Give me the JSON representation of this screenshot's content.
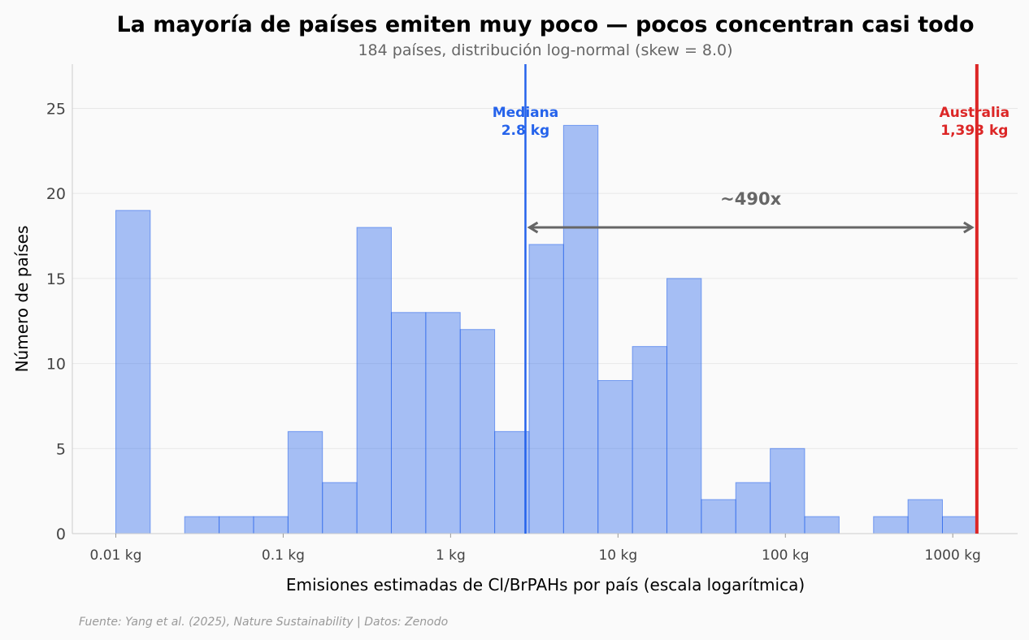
{
  "chart_data": {
    "type": "bar",
    "title": "La mayoría de países emiten muy poco — pocos concentran casi todo",
    "subtitle": "184 países, distribución log-normal (skew = 8.0)",
    "xlabel": "Emisiones estimadas de Cl/BrPAHs por país (escala logarítmica)",
    "ylabel": "Número de países",
    "x_scale": "log",
    "xlim": [
      0.0055,
      2440
    ],
    "ylim": [
      0,
      27.6
    ],
    "grid": true,
    "bin_range": [
      0.01,
      1393
    ],
    "counts": [
      19,
      0,
      1,
      1,
      1,
      6,
      3,
      18,
      13,
      13,
      12,
      6,
      17,
      24,
      9,
      11,
      15,
      2,
      3,
      5,
      1,
      0,
      1,
      2,
      1
    ],
    "x_ticks": [
      {
        "value": 0.01,
        "label": "0.01 kg"
      },
      {
        "value": 0.1,
        "label": "0.1 kg"
      },
      {
        "value": 1,
        "label": "1 kg"
      },
      {
        "value": 10,
        "label": "10 kg"
      },
      {
        "value": 100,
        "label": "100 kg"
      },
      {
        "value": 1000,
        "label": "1000 kg"
      }
    ],
    "y_ticks": [
      0,
      5,
      10,
      15,
      20,
      25
    ],
    "annotations": {
      "median": {
        "value": 2.8,
        "label_1": "Mediana",
        "label_2": "2.8 kg",
        "color": "#2563eb"
      },
      "max": {
        "value": 1393,
        "label_1": "Australia",
        "label_2": "1,393 kg",
        "color": "#dc2626"
      },
      "ratio": {
        "label": "~490x",
        "y": 18,
        "color": "#666666"
      }
    },
    "bar_color": "#2563eb"
  },
  "footer": {
    "source": "Fuente: Yang et al. (2025), Nature Sustainability | Datos: Zenodo"
  }
}
